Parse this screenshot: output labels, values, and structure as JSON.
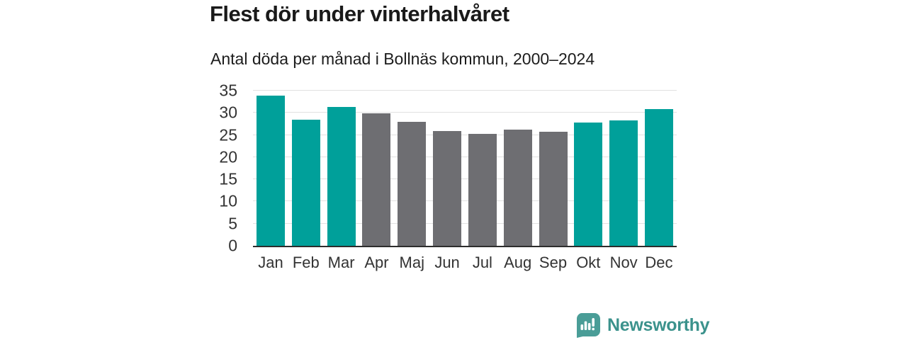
{
  "title": "Flest dör under vinterhalvåret",
  "subtitle": "Antal döda per månad i Bollnäs kommun, 2000–2024",
  "brand": {
    "name": "Newsworthy"
  },
  "colors": {
    "highlight_teal": "#00a09a",
    "muted_gray": "#6e6e72",
    "brand_teal": "#3b928c",
    "brand_icon_teal": "#4a9d97",
    "gridline": "#e1e1e1",
    "axis_line": "#2d2d2d",
    "text_dark": "#1a1a1a",
    "tick_text": "#333333"
  },
  "chart_data": {
    "type": "bar",
    "title": "Flest dör under vinterhalvåret",
    "subtitle": "Antal döda per månad i Bollnäs kommun, 2000–2024",
    "xlabel": "",
    "ylabel": "",
    "categories": [
      "Jan",
      "Feb",
      "Mar",
      "Apr",
      "Maj",
      "Jun",
      "Jul",
      "Aug",
      "Sep",
      "Okt",
      "Nov",
      "Dec"
    ],
    "values": [
      33.9,
      28.5,
      31.3,
      29.9,
      27.9,
      25.9,
      25.3,
      26.2,
      25.8,
      27.8,
      28.3,
      30.8
    ],
    "highlighted": [
      true,
      true,
      true,
      false,
      false,
      false,
      false,
      false,
      false,
      true,
      true,
      true
    ],
    "yticks": [
      0,
      5,
      10,
      15,
      20,
      25,
      30,
      35
    ],
    "ylim": [
      0,
      35
    ],
    "grid": true,
    "legend": false,
    "bar_color_highlight": "#00a09a",
    "bar_color_default": "#6e6e72"
  }
}
